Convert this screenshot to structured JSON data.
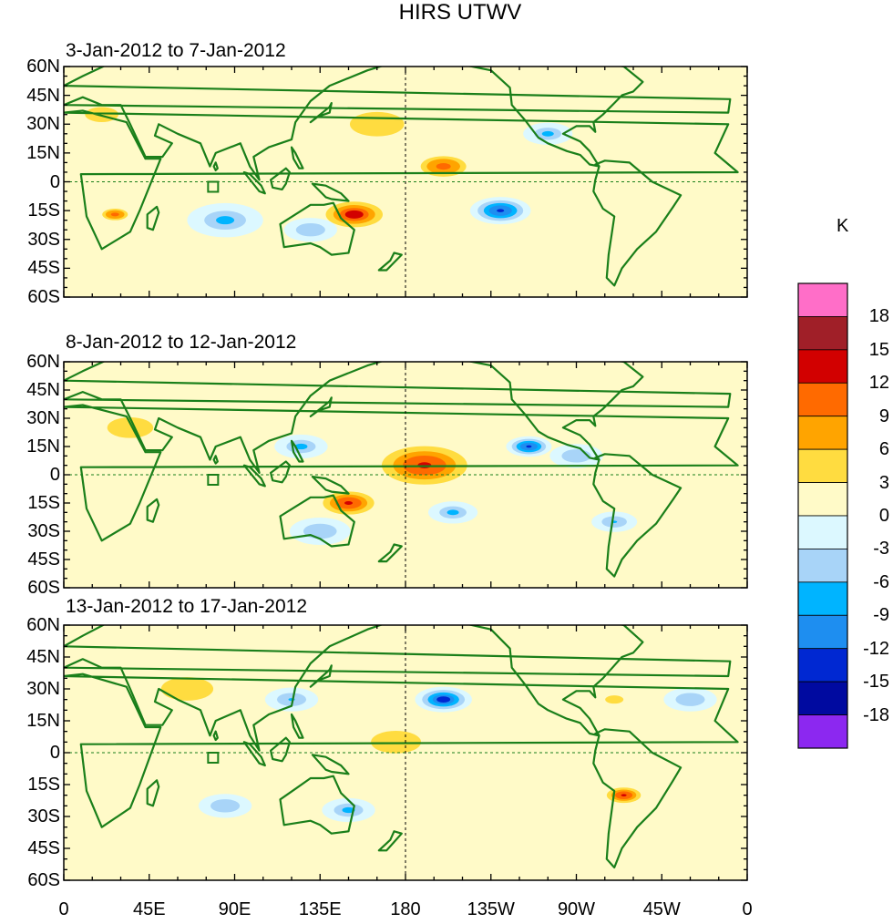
{
  "title": "HIRS UTWV",
  "unit": "K",
  "panels": [
    {
      "title": "3-Jan-2012 to 7-Jan-2012",
      "anomalies": [
        {
          "lon": 153,
          "lat": -17,
          "value": 15,
          "spread": 20
        },
        {
          "lon": 200,
          "lat": 8,
          "value": 12,
          "spread": 16
        },
        {
          "lon": 27,
          "lat": -17,
          "value": 12,
          "spread": 9
        },
        {
          "lon": 165,
          "lat": 30,
          "value": 6,
          "spread": 26
        },
        {
          "lon": 230,
          "lat": -15,
          "value": -13,
          "spread": 16
        },
        {
          "lon": 85,
          "lat": -20,
          "value": -8,
          "spread": 20
        },
        {
          "lon": 130,
          "lat": -25,
          "value": -6,
          "spread": 14
        },
        {
          "lon": 255,
          "lat": 25,
          "value": -8,
          "spread": 13
        },
        {
          "lon": 20,
          "lat": 35,
          "value": 6,
          "spread": 16
        }
      ]
    },
    {
      "title": "8-Jan-2012 to 12-Jan-2012",
      "anomalies": [
        {
          "lon": 190,
          "lat": 5,
          "value": 14,
          "spread": 30
        },
        {
          "lon": 150,
          "lat": -15,
          "value": 13,
          "spread": 18
        },
        {
          "lon": 245,
          "lat": 15,
          "value": -14,
          "spread": 12
        },
        {
          "lon": 125,
          "lat": 15,
          "value": -8,
          "spread": 14
        },
        {
          "lon": 35,
          "lat": 25,
          "value": 6,
          "spread": 22
        },
        {
          "lon": 135,
          "lat": -30,
          "value": -6,
          "spread": 16
        },
        {
          "lon": 205,
          "lat": -20,
          "value": -8,
          "spread": 13
        },
        {
          "lon": 290,
          "lat": -25,
          "value": -7,
          "spread": 12
        },
        {
          "lon": 270,
          "lat": 10,
          "value": -6,
          "spread": 14
        }
      ]
    },
    {
      "title": "13-Jan-2012 to 17-Jan-2012",
      "anomalies": [
        {
          "lon": 200,
          "lat": 25,
          "value": -15,
          "spread": 15
        },
        {
          "lon": 65,
          "lat": 30,
          "value": 6,
          "spread": 25
        },
        {
          "lon": 295,
          "lat": -20,
          "value": 14,
          "spread": 12
        },
        {
          "lon": 120,
          "lat": 25,
          "value": -7,
          "spread": 14
        },
        {
          "lon": 150,
          "lat": -27,
          "value": -8,
          "spread": 14
        },
        {
          "lon": 175,
          "lat": 5,
          "value": 6,
          "spread": 24
        },
        {
          "lon": 85,
          "lat": -25,
          "value": -6,
          "spread": 14
        },
        {
          "lon": 330,
          "lat": 25,
          "value": -6,
          "spread": 14
        },
        {
          "lon": 290,
          "lat": 25,
          "value": 4,
          "spread": 20
        }
      ]
    }
  ],
  "lat_labels": [
    "60N",
    "45N",
    "30N",
    "15N",
    "0",
    "15S",
    "30S",
    "45S",
    "60S"
  ],
  "lon_labels": [
    "0",
    "45E",
    "90E",
    "135E",
    "180",
    "135W",
    "90W",
    "45W",
    "0"
  ],
  "colorbar": {
    "labels": [
      "18",
      "15",
      "12",
      "9",
      "6",
      "3",
      "0",
      "-3",
      "-6",
      "-9",
      "-12",
      "-15",
      "-18"
    ],
    "colors": [
      "#ff6ec8",
      "#a01f28",
      "#d20000",
      "#ff6a00",
      "#ffa400",
      "#ffdc40",
      "#fffac8",
      "#dcf8ff",
      "#a8d4f8",
      "#00b4ff",
      "#1e8ef0",
      "#0028d2",
      "#000aa0",
      "#8c28f0"
    ]
  },
  "line_colors": {
    "coastline": "#1a7f1a",
    "grid": "#1a7f1a"
  },
  "chart_data": {
    "type": "heatmap",
    "title": "HIRS UTWV",
    "units": "K",
    "xlabel": "",
    "ylabel": "",
    "xlim": [
      0,
      360
    ],
    "ylim": [
      -60,
      60
    ],
    "x_ticks": [
      "0",
      "45E",
      "90E",
      "135E",
      "180",
      "135W",
      "90W",
      "45W",
      "0"
    ],
    "y_ticks": [
      "60N",
      "45N",
      "30N",
      "15N",
      "0",
      "15S",
      "30S",
      "45S",
      "60S"
    ],
    "levels": [
      -18,
      -15,
      -12,
      -9,
      -6,
      -3,
      0,
      3,
      6,
      9,
      12,
      15,
      18
    ]
  }
}
